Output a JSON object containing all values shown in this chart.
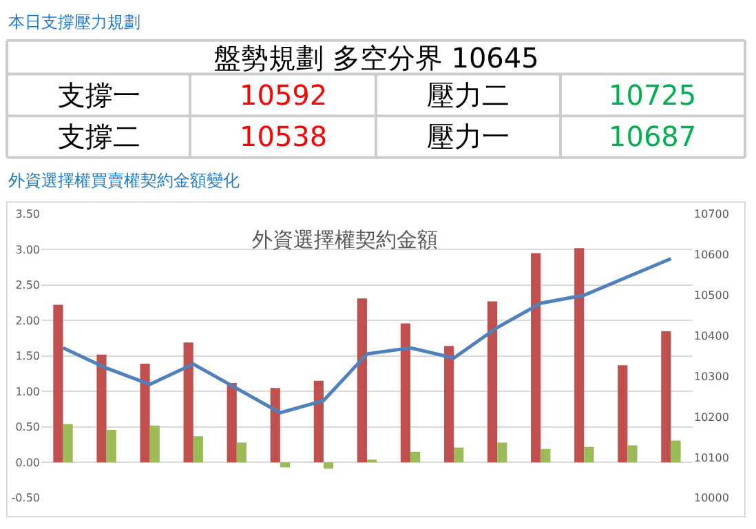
{
  "chart_data": [
    {
      "type": "other",
      "title": "本日支撐壓力規劃",
      "annotations": [
        "盤勢規劃 多空分界 10645",
        "支撐一",
        "10592",
        "壓力二",
        "10725",
        "支撐二",
        "10538",
        "壓力一",
        "10687"
      ],
      "colors": [
        "#000000",
        "#000000",
        "#ff0000",
        "#000000",
        "#00b050",
        "#000000",
        "#ff0000",
        "#000000",
        "#00b050"
      ]
    },
    {
      "type": "bar",
      "title": "外資選擇權買賣權契約金額變化",
      "subtitle": "外資選擇權契約金額",
      "categories": [
        null,
        null,
        null,
        null,
        null,
        null,
        null,
        null,
        null,
        null,
        null,
        null,
        null,
        null,
        null
      ],
      "series": [
        {
          "type": "bar",
          "color": "#c0504d",
          "values": [
            2.22,
            1.52,
            1.39,
            1.69,
            1.12,
            1.05,
            1.15,
            2.31,
            1.96,
            1.64,
            2.27,
            2.95,
            3.02,
            1.37,
            1.85
          ]
        },
        {
          "type": "bar",
          "color": "#9bbb59",
          "values": [
            0.54,
            0.46,
            0.52,
            0.37,
            0.28,
            -0.07,
            -0.09,
            0.04,
            0.15,
            0.21,
            0.28,
            0.19,
            0.22,
            0.24,
            0.31
          ]
        },
        {
          "type": "line",
          "axis": "y2",
          "color": "#4f81bd",
          "values": [
            10370,
            10320,
            10280,
            10330,
            10270,
            10210,
            10240,
            10355,
            10370,
            10345,
            10420,
            10480,
            10500,
            10545,
            10590
          ]
        }
      ],
      "ylim": [
        -0.5,
        3.5
      ],
      "yticks": [
        {
          "value": -0.5,
          "label": "-0.50"
        },
        {
          "value": 0,
          "label": "0.00"
        },
        {
          "value": 0.5,
          "label": "0.50"
        },
        {
          "value": 1,
          "label": "1.00"
        },
        {
          "value": 1.5,
          "label": "1.50"
        },
        {
          "value": 2,
          "label": "2.00"
        },
        {
          "value": 2.5,
          "label": "2.50"
        },
        {
          "value": 3,
          "label": "3.00"
        },
        {
          "value": 3.5,
          "label": "3.50"
        }
      ],
      "y2lim": [
        10000,
        10700
      ],
      "y2ticks": [
        10000,
        10100,
        10200,
        10300,
        10400,
        10500,
        10600,
        10700
      ],
      "grid": "y",
      "marker": "none",
      "line_style": "solid"
    }
  ]
}
